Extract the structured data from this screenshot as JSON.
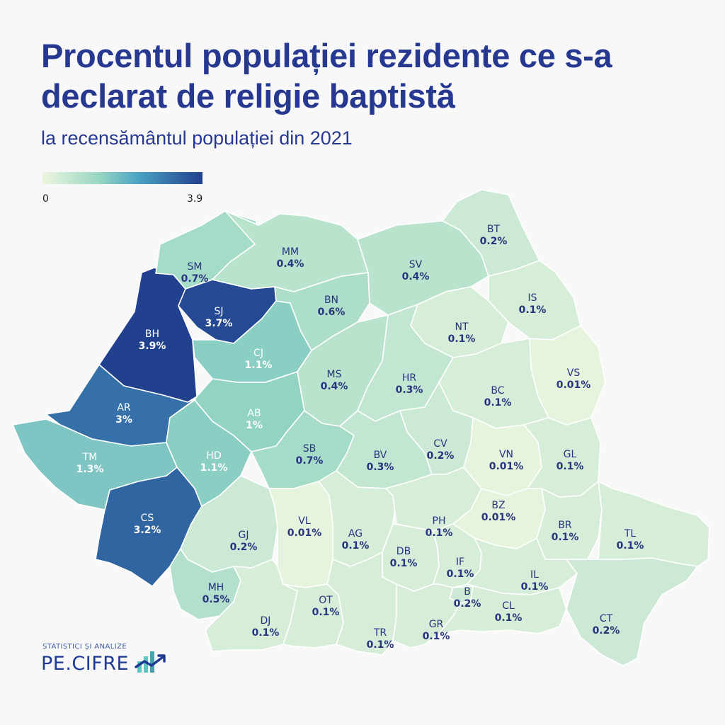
{
  "title": "Procentul populației rezidente ce s-a declarat de religie baptistă",
  "subtitle": "la recensământul populației din 2021",
  "legend": {
    "min": "0",
    "max": "3.9",
    "min_value": 0,
    "max_value": 3.9,
    "colors": [
      "#ecf5df",
      "#99d7c3",
      "#4aa3c3",
      "#21408e"
    ]
  },
  "logo": {
    "tagline": "STATISTICI ȘI ANALIZE",
    "name": "PE.CIFRE",
    "icon": "bar-chart-trend-icon"
  },
  "chart_data": {
    "type": "choropleth",
    "unit": "%",
    "region": "Romania counties",
    "counties": [
      {
        "code": "BH",
        "value": 3.9,
        "label": "3.9%"
      },
      {
        "code": "SJ",
        "value": 3.7,
        "label": "3.7%"
      },
      {
        "code": "CS",
        "value": 3.2,
        "label": "3.2%"
      },
      {
        "code": "AR",
        "value": 3.0,
        "label": "3%"
      },
      {
        "code": "TM",
        "value": 1.3,
        "label": "1.3%"
      },
      {
        "code": "CJ",
        "value": 1.1,
        "label": "1.1%"
      },
      {
        "code": "HD",
        "value": 1.1,
        "label": "1.1%"
      },
      {
        "code": "AB",
        "value": 1.0,
        "label": "1%"
      },
      {
        "code": "SM",
        "value": 0.7,
        "label": "0.7%"
      },
      {
        "code": "SB",
        "value": 0.7,
        "label": "0.7%"
      },
      {
        "code": "BN",
        "value": 0.6,
        "label": "0.6%"
      },
      {
        "code": "MH",
        "value": 0.5,
        "label": "0.5%"
      },
      {
        "code": "MM",
        "value": 0.4,
        "label": "0.4%"
      },
      {
        "code": "SV",
        "value": 0.4,
        "label": "0.4%"
      },
      {
        "code": "MS",
        "value": 0.4,
        "label": "0.4%"
      },
      {
        "code": "HR",
        "value": 0.3,
        "label": "0.3%"
      },
      {
        "code": "BV",
        "value": 0.3,
        "label": "0.3%"
      },
      {
        "code": "BT",
        "value": 0.2,
        "label": "0.2%"
      },
      {
        "code": "CV",
        "value": 0.2,
        "label": "0.2%"
      },
      {
        "code": "GJ",
        "value": 0.2,
        "label": "0.2%"
      },
      {
        "code": "B",
        "value": 0.2,
        "label": "0.2%"
      },
      {
        "code": "CT",
        "value": 0.2,
        "label": "0.2%"
      },
      {
        "code": "IS",
        "value": 0.1,
        "label": "0.1%"
      },
      {
        "code": "NT",
        "value": 0.1,
        "label": "0.1%"
      },
      {
        "code": "BC",
        "value": 0.1,
        "label": "0.1%"
      },
      {
        "code": "GL",
        "value": 0.1,
        "label": "0.1%"
      },
      {
        "code": "BR",
        "value": 0.1,
        "label": "0.1%"
      },
      {
        "code": "TL",
        "value": 0.1,
        "label": "0.1%"
      },
      {
        "code": "AG",
        "value": 0.1,
        "label": "0.1%"
      },
      {
        "code": "PH",
        "value": 0.1,
        "label": "0.1%"
      },
      {
        "code": "DB",
        "value": 0.1,
        "label": "0.1%"
      },
      {
        "code": "IF",
        "value": 0.1,
        "label": "0.1%"
      },
      {
        "code": "IL",
        "value": 0.1,
        "label": "0.1%"
      },
      {
        "code": "CL",
        "value": 0.1,
        "label": "0.1%"
      },
      {
        "code": "GR",
        "value": 0.1,
        "label": "0.1%"
      },
      {
        "code": "TR",
        "value": 0.1,
        "label": "0.1%"
      },
      {
        "code": "OT",
        "value": 0.1,
        "label": "0.1%"
      },
      {
        "code": "DJ",
        "value": 0.1,
        "label": "0.1%"
      },
      {
        "code": "VS",
        "value": 0.01,
        "label": "0.01%"
      },
      {
        "code": "VN",
        "value": 0.01,
        "label": "0.01%"
      },
      {
        "code": "BZ",
        "value": 0.01,
        "label": "0.01%"
      },
      {
        "code": "VL",
        "value": 0.01,
        "label": "0.01%"
      }
    ]
  }
}
